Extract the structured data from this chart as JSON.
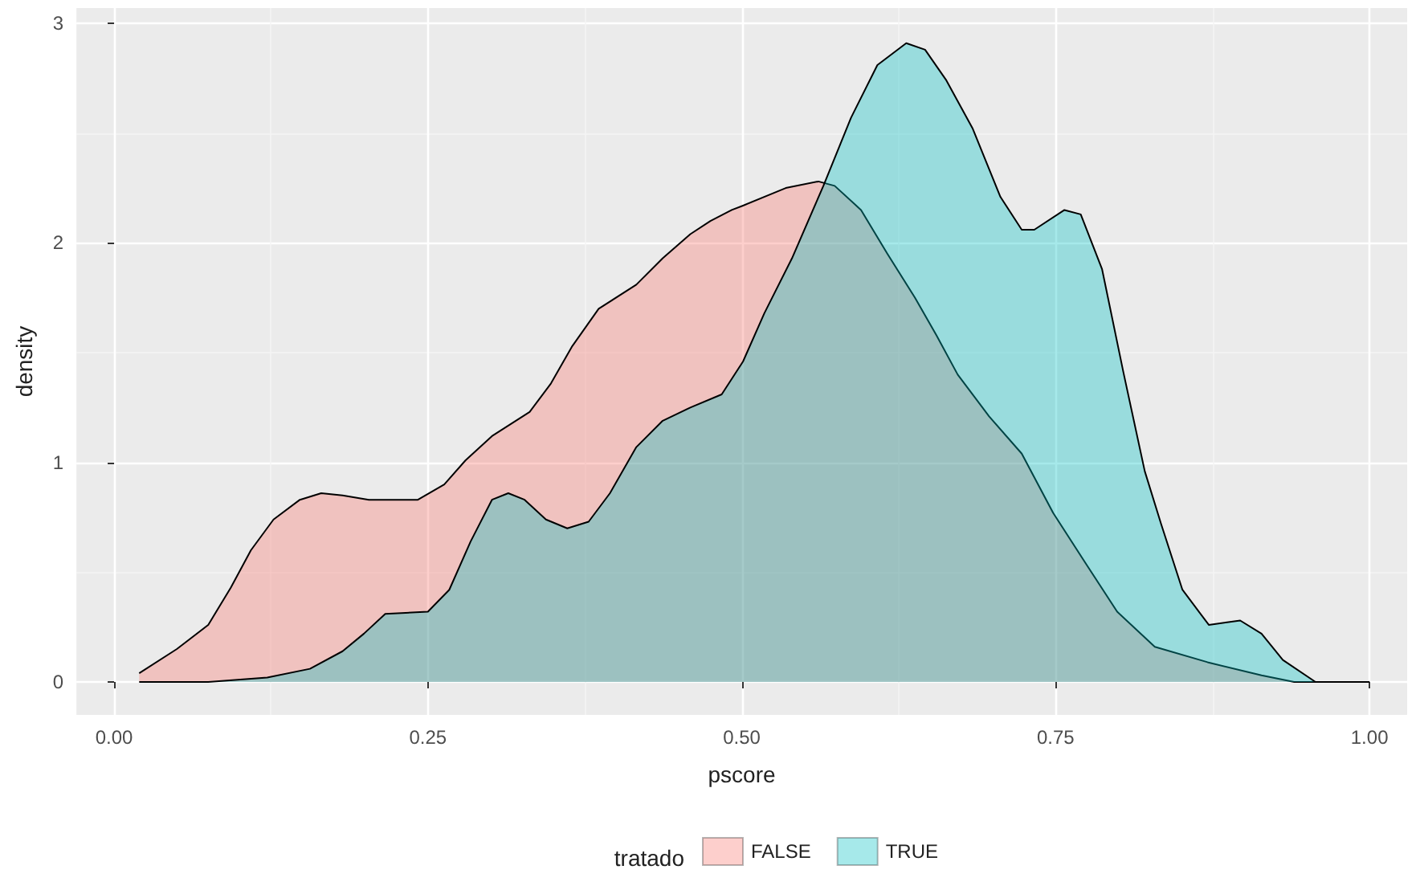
{
  "chart_data": {
    "type": "area",
    "xlabel": "pscore",
    "ylabel": "density",
    "legend_title": "tratado",
    "legend": "bottom",
    "grid": true,
    "xlim": [
      -0.03,
      1.03
    ],
    "ylim": [
      -0.15,
      3.07
    ],
    "xticks": [
      {
        "value": 0,
        "label": "0.00"
      },
      {
        "value": 0.25,
        "label": "0.25"
      },
      {
        "value": 0.5,
        "label": "0.50"
      },
      {
        "value": 0.75,
        "label": "0.75"
      },
      {
        "value": 1,
        "label": "1.00"
      }
    ],
    "yticks": [
      0,
      1,
      2,
      3
    ],
    "series": [
      {
        "name": "FALSE",
        "color": "#f8766d",
        "x": [
          0.02,
          0.05,
          0.075,
          0.093,
          0.109,
          0.127,
          0.148,
          0.165,
          0.182,
          0.203,
          0.242,
          0.263,
          0.28,
          0.301,
          0.331,
          0.348,
          0.365,
          0.386,
          0.416,
          0.437,
          0.459,
          0.475,
          0.492,
          0.501,
          0.535,
          0.561,
          0.574,
          0.595,
          0.616,
          0.638,
          0.655,
          0.672,
          0.697,
          0.723,
          0.748,
          0.774,
          0.799,
          0.829,
          0.871,
          0.914,
          0.94,
          1.0
        ],
        "values": [
          0.04,
          0.15,
          0.26,
          0.43,
          0.6,
          0.74,
          0.83,
          0.86,
          0.85,
          0.83,
          0.83,
          0.9,
          1.01,
          1.12,
          1.23,
          1.36,
          1.53,
          1.7,
          1.81,
          1.93,
          2.04,
          2.1,
          2.15,
          2.17,
          2.25,
          2.28,
          2.26,
          2.15,
          1.95,
          1.75,
          1.58,
          1.4,
          1.21,
          1.04,
          0.77,
          0.54,
          0.32,
          0.16,
          0.09,
          0.03,
          0.0,
          0.0
        ]
      },
      {
        "name": "TRUE",
        "color": "#00bfc4",
        "x": [
          0.02,
          0.075,
          0.122,
          0.156,
          0.182,
          0.199,
          0.216,
          0.25,
          0.267,
          0.284,
          0.301,
          0.314,
          0.327,
          0.344,
          0.361,
          0.378,
          0.395,
          0.416,
          0.437,
          0.459,
          0.484,
          0.501,
          0.518,
          0.54,
          0.565,
          0.587,
          0.608,
          0.631,
          0.646,
          0.663,
          0.684,
          0.706,
          0.723,
          0.733,
          0.757,
          0.77,
          0.787,
          0.804,
          0.821,
          0.834,
          0.851,
          0.872,
          0.897,
          0.914,
          0.931,
          0.957,
          1.0
        ],
        "values": [
          0.0,
          0.0,
          0.02,
          0.06,
          0.14,
          0.22,
          0.31,
          0.32,
          0.42,
          0.64,
          0.83,
          0.86,
          0.83,
          0.74,
          0.7,
          0.73,
          0.86,
          1.07,
          1.19,
          1.25,
          1.31,
          1.46,
          1.68,
          1.93,
          2.26,
          2.57,
          2.81,
          2.91,
          2.88,
          2.74,
          2.52,
          2.21,
          2.06,
          2.06,
          2.15,
          2.13,
          1.88,
          1.41,
          0.96,
          0.72,
          0.42,
          0.26,
          0.28,
          0.22,
          0.1,
          0.0,
          0.0
        ]
      }
    ]
  }
}
